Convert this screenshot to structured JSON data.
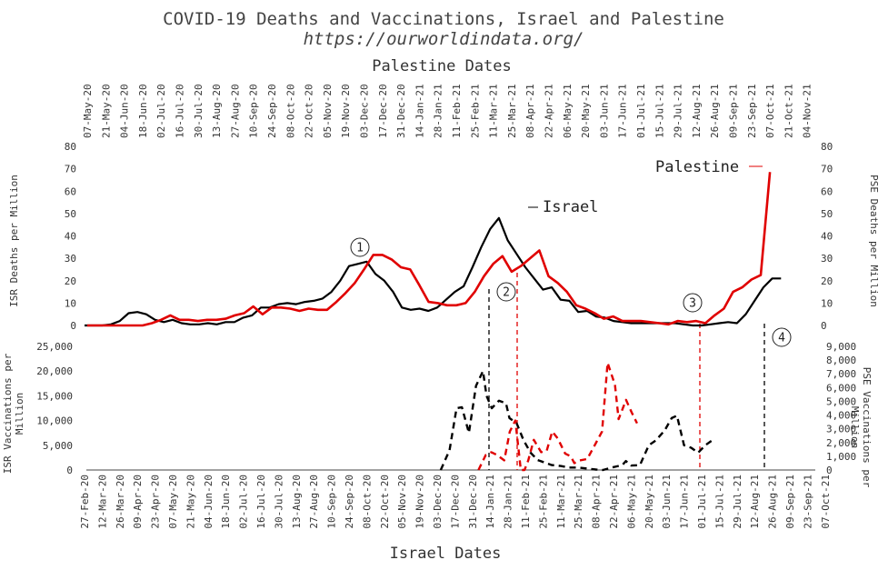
{
  "title": "COVID-19 Deaths and Vaccinations, Israel and Palestine",
  "subtitle": "https://ourworldindata.org/",
  "colors": {
    "israel": "#000000",
    "palestine": "#e00000"
  },
  "annotations": {
    "israel": "Israel",
    "palestine": "Palestine",
    "markers": [
      "1",
      "2",
      "3",
      "4"
    ]
  },
  "chart_data": {
    "type": "line",
    "top_axis": {
      "label": "Palestine Dates",
      "ticks": [
        "07-May-20",
        "21-May-20",
        "04-Jun-20",
        "18-Jun-20",
        "02-Jul-20",
        "16-Jul-20",
        "30-Jul-20",
        "13-Aug-20",
        "27-Aug-20",
        "10-Sep-20",
        "24-Sep-20",
        "08-Oct-20",
        "22-Oct-20",
        "05-Nov-20",
        "19-Nov-20",
        "03-Dec-20",
        "17-Dec-20",
        "31-Dec-20",
        "14-Jan-21",
        "28-Jan-21",
        "11-Feb-21",
        "25-Feb-21",
        "11-Mar-21",
        "25-Mar-21",
        "08-Apr-21",
        "22-Apr-21",
        "06-May-21",
        "20-May-21",
        "03-Jun-21",
        "17-Jun-21",
        "01-Jul-21",
        "15-Jul-21",
        "29-Jul-21",
        "12-Aug-21",
        "26-Aug-21",
        "09-Sep-21",
        "23-Sep-21",
        "07-Oct-21",
        "21-Oct-21",
        "04-Nov-21"
      ]
    },
    "bottom_axis": {
      "label": "Israel Dates",
      "ticks": [
        "27-Feb-20",
        "12-Mar-20",
        "26-Mar-20",
        "09-Apr-20",
        "23-Apr-20",
        "07-May-20",
        "21-May-20",
        "04-Jun-20",
        "18-Jun-20",
        "02-Jul-20",
        "16-Jul-20",
        "30-Jul-20",
        "13-Aug-20",
        "27-Aug-20",
        "10-Sep-20",
        "24-Sep-20",
        "08-Oct-20",
        "22-Oct-20",
        "05-Nov-20",
        "19-Nov-20",
        "03-Dec-20",
        "17-Dec-20",
        "31-Dec-20",
        "14-Jan-21",
        "28-Jan-21",
        "11-Feb-21",
        "25-Feb-21",
        "11-Mar-21",
        "25-Mar-21",
        "08-Apr-21",
        "22-Apr-21",
        "06-May-21",
        "20-May-21",
        "03-Jun-21",
        "17-Jun-21",
        "01-Jul-21",
        "15-Jul-21",
        "29-Jul-21",
        "12-Aug-21",
        "26-Aug-21",
        "09-Sep-21",
        "23-Sep-21",
        "07-Oct-21"
      ]
    },
    "deaths_panel": {
      "left_label": "ISR Deaths per Million",
      "right_label": "PSE Deaths per Million",
      "ylim": [
        0,
        80
      ],
      "ticks": [
        "0",
        "10",
        "20",
        "30",
        "40",
        "50",
        "60",
        "70",
        "80"
      ],
      "series": [
        {
          "name": "Israel",
          "x_axis": "bottom",
          "values": [
            0,
            0,
            0,
            0.5,
            2,
            5.5,
            6,
            5,
            2.5,
            1.5,
            2.5,
            1,
            0.5,
            0.5,
            1,
            0.5,
            1.5,
            1.5,
            3.5,
            4.5,
            8,
            8,
            9.5,
            10,
            9.5,
            10.5,
            11,
            12,
            15,
            20,
            26.5,
            27.5,
            28.5,
            23,
            20,
            15,
            8,
            7,
            7.5,
            6.5,
            8,
            11.5,
            15,
            17.5,
            26,
            35,
            43,
            48,
            38,
            32,
            26,
            21,
            16,
            17,
            11.5,
            11,
            6,
            6.5,
            4,
            3.5,
            2,
            1.5,
            1,
            1,
            1,
            1,
            1,
            1,
            0.5,
            0,
            0,
            0.5,
            1,
            1.5,
            1,
            5,
            11,
            17,
            21,
            21
          ]
        },
        {
          "name": "Palestine",
          "x_axis": "top",
          "values": [
            0,
            0,
            0,
            0,
            0,
            0,
            0,
            1,
            2.5,
            4.5,
            2.5,
            2.5,
            2,
            2.5,
            2.5,
            3,
            4.5,
            5.5,
            8.5,
            5,
            8,
            8,
            7.5,
            6.5,
            7.5,
            7,
            7,
            10.5,
            14.5,
            19,
            25,
            31.5,
            31.5,
            29.5,
            26,
            25,
            18,
            10.5,
            10,
            9,
            9,
            10,
            15,
            22,
            27.5,
            31,
            24,
            26.5,
            30,
            33.5,
            22,
            19,
            15,
            9,
            7.5,
            5.5,
            3,
            4,
            2,
            2,
            2,
            1.5,
            1,
            0.5,
            2,
            1.5,
            2,
            1,
            4.5,
            7.5,
            15,
            17,
            20.5,
            22.5,
            68.5
          ]
        }
      ]
    },
    "vacc_panel": {
      "left_label": "ISR Vaccinations per Million",
      "right_label": "PSE Vaccinations per Million",
      "left_ylim": [
        0,
        25000
      ],
      "left_ticks": [
        "0",
        "5,000",
        "10,000",
        "15,000",
        "20,000",
        "25,000"
      ],
      "right_ylim": [
        0,
        9000
      ],
      "right_ticks": [
        "0",
        "1,000",
        "2,000",
        "3,000",
        "4,000",
        "5,000",
        "6,000",
        "7,000",
        "8,000",
        "9,000"
      ],
      "series": [
        {
          "name": "Israel",
          "x_axis": "bottom",
          "dashed": true,
          "points": [
            [
              20.2,
              0
            ],
            [
              20.7,
              4000
            ],
            [
              21.1,
              12500
            ],
            [
              21.4,
              12700
            ],
            [
              21.8,
              7500
            ],
            [
              22.2,
              17000
            ],
            [
              22.6,
              20000
            ],
            [
              22.8,
              15000
            ],
            [
              23.1,
              12500
            ],
            [
              23.5,
              14000
            ],
            [
              23.9,
              13500
            ],
            [
              24.1,
              10500
            ],
            [
              24.5,
              9500
            ],
            [
              24.9,
              6000
            ],
            [
              25.3,
              3500
            ],
            [
              25.7,
              2000
            ],
            [
              26.1,
              1500
            ],
            [
              26.5,
              1000
            ],
            [
              27.0,
              800
            ],
            [
              27.5,
              500
            ],
            [
              28.0,
              500
            ],
            [
              28.5,
              300
            ],
            [
              29.0,
              100
            ],
            [
              29.4,
              0
            ],
            [
              29.9,
              500
            ],
            [
              30.5,
              1000
            ],
            [
              30.7,
              1800
            ],
            [
              31.0,
              900
            ],
            [
              31.5,
              1000
            ],
            [
              32.0,
              5000
            ],
            [
              32.4,
              6000
            ],
            [
              32.9,
              8000
            ],
            [
              33.3,
              10500
            ],
            [
              33.6,
              11000
            ],
            [
              34.0,
              5000
            ],
            [
              34.4,
              4500
            ],
            [
              34.8,
              3500
            ],
            [
              35.2,
              5000
            ],
            [
              35.6,
              6000
            ]
          ]
        },
        {
          "name": "Palestine",
          "x_axis": "top",
          "dashed": true,
          "points": [
            [
              21.2,
              0
            ],
            [
              21.6,
              1100
            ],
            [
              21.9,
              1300
            ],
            [
              22.2,
              1100
            ],
            [
              22.6,
              700
            ],
            [
              22.9,
              2800
            ],
            [
              23.2,
              3600
            ],
            [
              23.5,
              0
            ],
            [
              23.7,
              0
            ],
            [
              23.9,
              700
            ],
            [
              24.2,
              2200
            ],
            [
              24.6,
              1300
            ],
            [
              24.9,
              1400
            ],
            [
              25.2,
              2800
            ],
            [
              25.5,
              2300
            ],
            [
              25.9,
              1200
            ],
            [
              26.2,
              1000
            ],
            [
              26.4,
              500
            ],
            [
              26.7,
              700
            ],
            [
              27.1,
              800
            ],
            [
              27.5,
              1800
            ],
            [
              27.9,
              2800
            ],
            [
              28.2,
              7800
            ],
            [
              28.6,
              6200
            ],
            [
              28.8,
              3700
            ],
            [
              29.2,
              5100
            ],
            [
              29.5,
              4200
            ],
            [
              29.8,
              3400
            ]
          ]
        }
      ]
    }
  }
}
